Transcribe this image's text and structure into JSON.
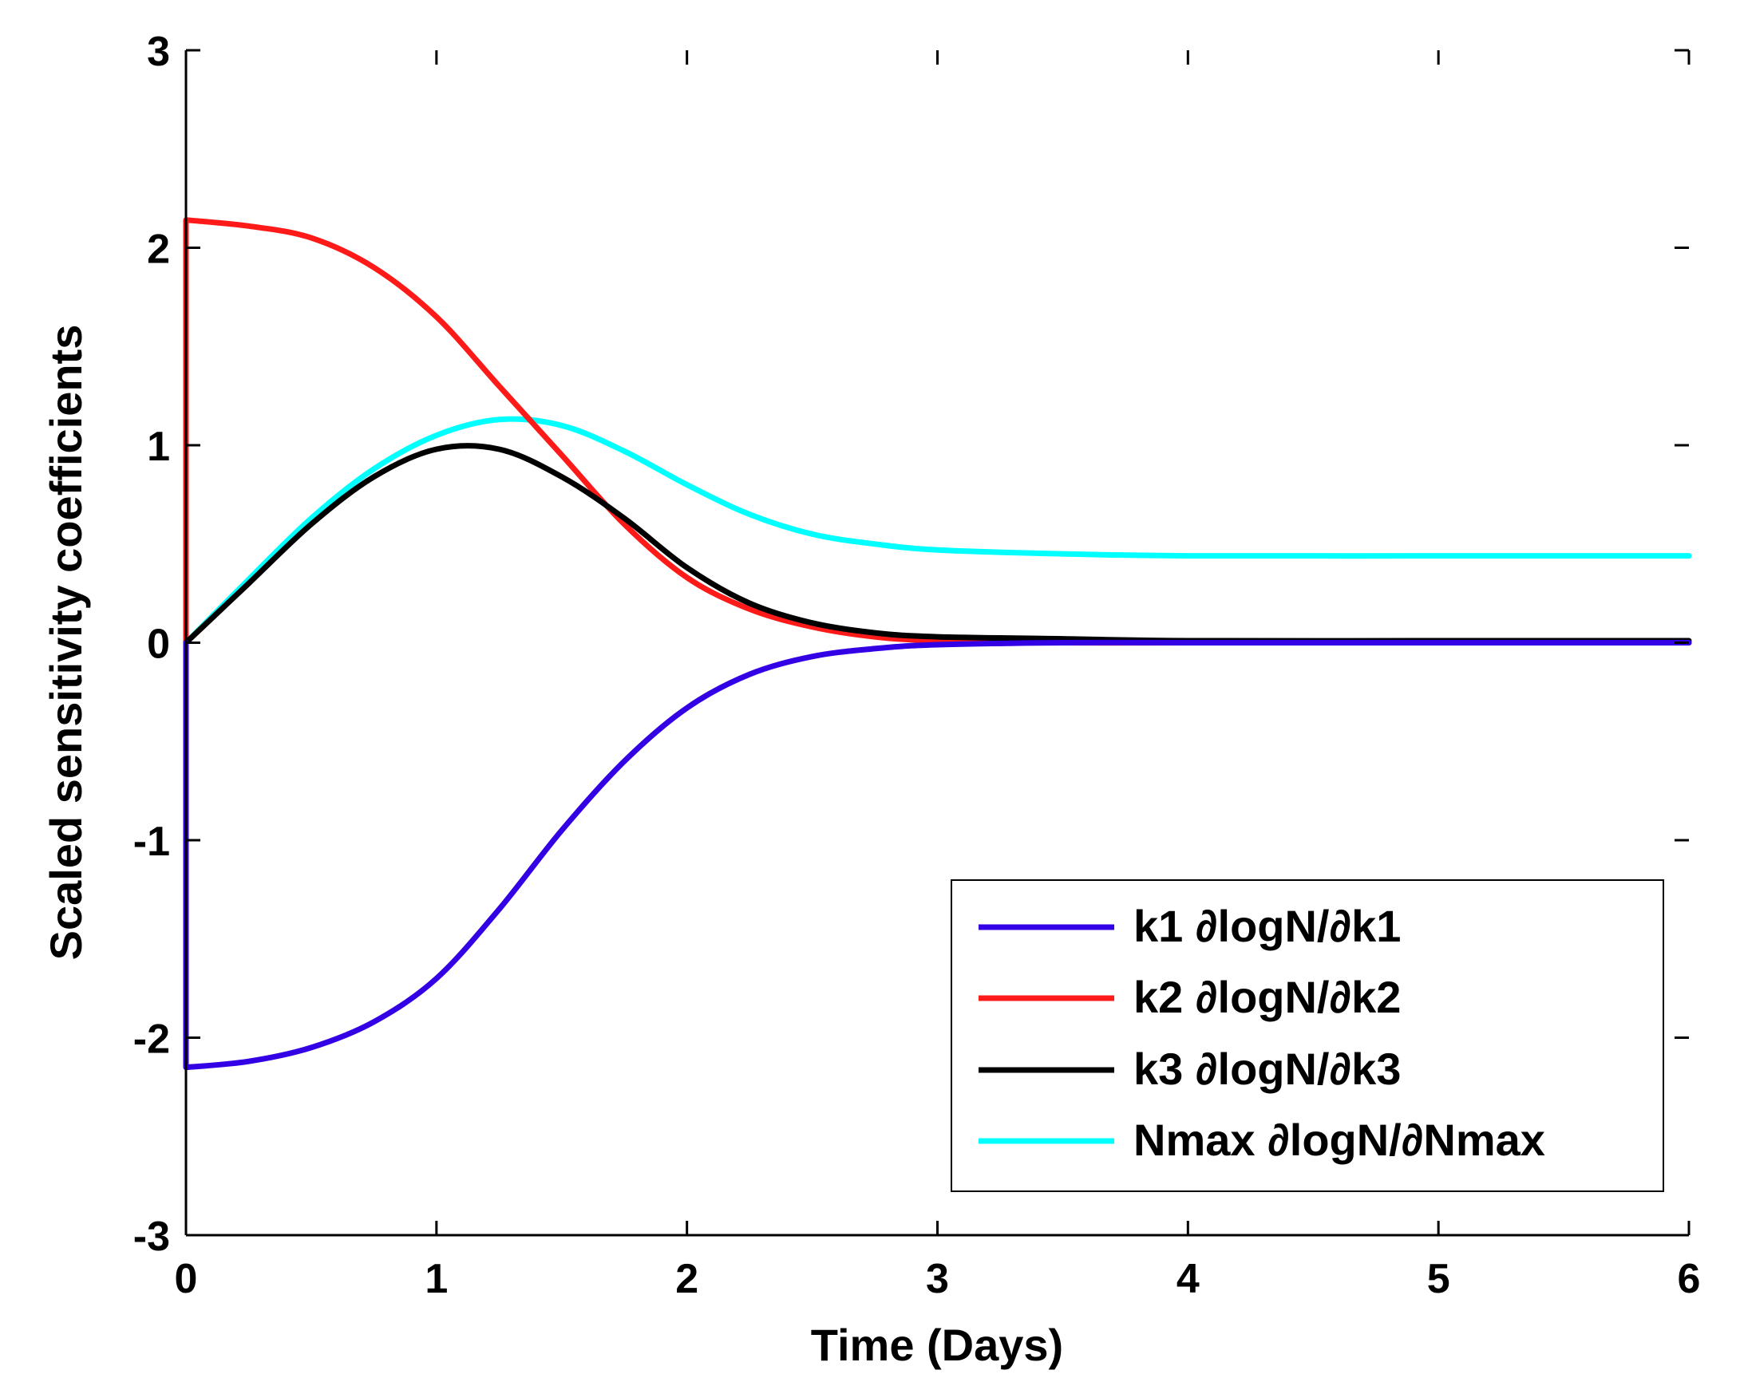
{
  "chart_data": {
    "type": "line",
    "title": "",
    "xlabel": "Time (Days)",
    "ylabel": "Scaled sensitivity coefficients",
    "xlim": [
      0,
      6
    ],
    "ylim": [
      -3,
      3
    ],
    "xticks": [
      "0",
      "1",
      "2",
      "3",
      "4",
      "5",
      "6"
    ],
    "yticks": [
      "-3",
      "-2",
      "-1",
      "0",
      "1",
      "2",
      "3"
    ],
    "grid": false,
    "legend_position": "lower-right",
    "x": [
      0,
      0.25,
      0.5,
      0.75,
      1.0,
      1.25,
      1.5,
      1.75,
      2.0,
      2.25,
      2.5,
      2.75,
      3.0,
      3.5,
      4.0,
      5.0,
      6.0
    ],
    "series": [
      {
        "name": "k1 ∂logN/∂k1",
        "color": "#3300e6",
        "start_value": -2.15,
        "values": [
          0,
          -2.12,
          -2.05,
          -1.92,
          -1.7,
          -1.35,
          -0.95,
          -0.6,
          -0.33,
          -0.16,
          -0.07,
          -0.03,
          -0.01,
          0,
          0,
          0,
          0
        ]
      },
      {
        "name": "k2 ∂logN/∂k2",
        "color": "#ff1a1a",
        "start_value": 2.14,
        "values": [
          0,
          2.11,
          2.05,
          1.9,
          1.65,
          1.3,
          0.95,
          0.6,
          0.33,
          0.17,
          0.08,
          0.03,
          0.01,
          0,
          0,
          0,
          0
        ]
      },
      {
        "name": "k3 ∂logN/∂k3",
        "color": "#000000",
        "values": [
          0,
          0.3,
          0.6,
          0.84,
          0.98,
          0.98,
          0.84,
          0.63,
          0.38,
          0.2,
          0.1,
          0.05,
          0.03,
          0.02,
          0.01,
          0.01,
          0.01
        ]
      },
      {
        "name": "Nmax ∂logN/∂Nmax",
        "color": "#00ffff",
        "values": [
          0,
          0.32,
          0.63,
          0.88,
          1.05,
          1.13,
          1.1,
          0.97,
          0.8,
          0.65,
          0.55,
          0.5,
          0.47,
          0.45,
          0.44,
          0.44,
          0.44
        ]
      }
    ]
  }
}
